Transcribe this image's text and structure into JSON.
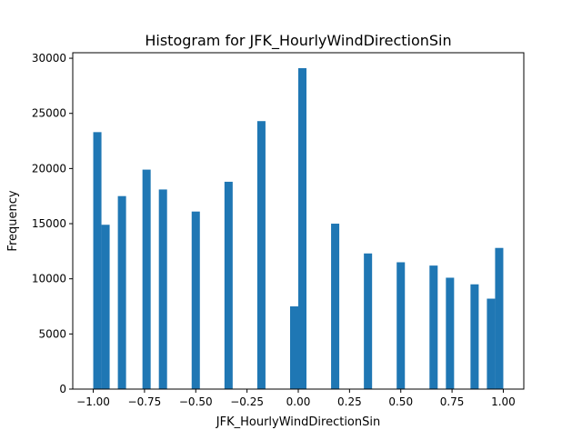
{
  "chart_data": {
    "type": "bar",
    "title": "Histogram for JFK_HourlyWindDirectionSin",
    "xlabel": "JFK_HourlyWindDirectionSin",
    "ylabel": "Frequency",
    "xlim": [
      -1.1,
      1.1
    ],
    "ylim": [
      0,
      30500
    ],
    "bar_color": "#1f77b4",
    "grid": false,
    "x_ticks": [
      {
        "value": -1.0,
        "label": "−1.00"
      },
      {
        "value": -0.75,
        "label": "−0.75"
      },
      {
        "value": -0.5,
        "label": "−0.50"
      },
      {
        "value": -0.25,
        "label": "−0.25"
      },
      {
        "value": 0.0,
        "label": "0.00"
      },
      {
        "value": 0.25,
        "label": "0.25"
      },
      {
        "value": 0.5,
        "label": "0.50"
      },
      {
        "value": 0.75,
        "label": "0.75"
      },
      {
        "value": 1.0,
        "label": "1.00"
      }
    ],
    "y_ticks": [
      {
        "value": 0,
        "label": "0"
      },
      {
        "value": 5000,
        "label": "5000"
      },
      {
        "value": 10000,
        "label": "10000"
      },
      {
        "value": 15000,
        "label": "15000"
      },
      {
        "value": 20000,
        "label": "20000"
      },
      {
        "value": 25000,
        "label": "25000"
      },
      {
        "value": 30000,
        "label": "30000"
      }
    ],
    "bins": [
      {
        "x0": -1.0,
        "x1": -0.96,
        "value": 23300
      },
      {
        "x0": -0.96,
        "x1": -0.92,
        "value": 14900
      },
      {
        "x0": -0.88,
        "x1": -0.84,
        "value": 17500
      },
      {
        "x0": -0.76,
        "x1": -0.72,
        "value": 19900
      },
      {
        "x0": -0.68,
        "x1": -0.64,
        "value": 18100
      },
      {
        "x0": -0.52,
        "x1": -0.48,
        "value": 16100
      },
      {
        "x0": -0.36,
        "x1": -0.32,
        "value": 18800
      },
      {
        "x0": -0.2,
        "x1": -0.16,
        "value": 24300
      },
      {
        "x0": -0.04,
        "x1": 0.0,
        "value": 7500
      },
      {
        "x0": 0.0,
        "x1": 0.04,
        "value": 29100
      },
      {
        "x0": 0.16,
        "x1": 0.2,
        "value": 15000
      },
      {
        "x0": 0.32,
        "x1": 0.36,
        "value": 12300
      },
      {
        "x0": 0.48,
        "x1": 0.52,
        "value": 11500
      },
      {
        "x0": 0.64,
        "x1": 0.68,
        "value": 11200
      },
      {
        "x0": 0.72,
        "x1": 0.76,
        "value": 10100
      },
      {
        "x0": 0.84,
        "x1": 0.88,
        "value": 9500
      },
      {
        "x0": 0.92,
        "x1": 0.96,
        "value": 8200
      },
      {
        "x0": 0.96,
        "x1": 1.0,
        "value": 12800
      }
    ]
  }
}
